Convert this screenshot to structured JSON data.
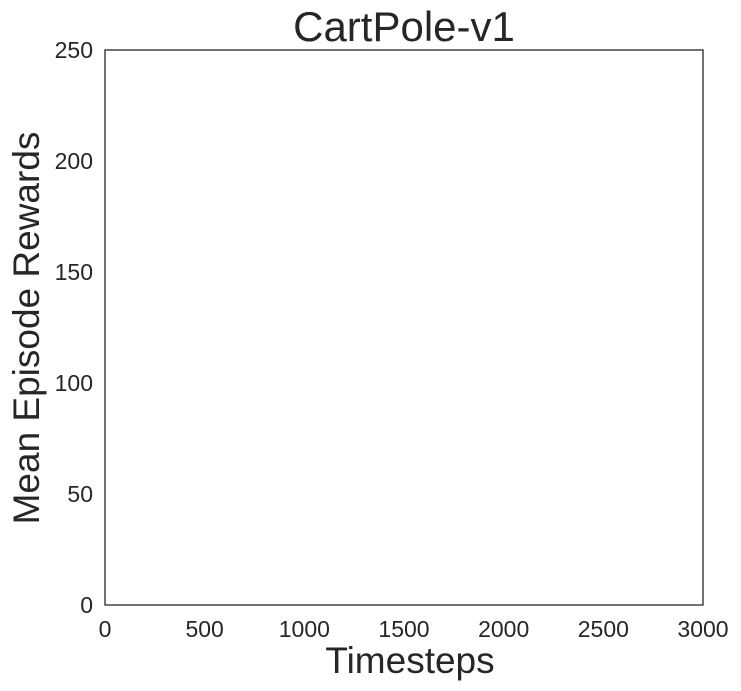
{
  "chart_data": {
    "type": "line",
    "title": "CartPole-v1",
    "xlabel": "Timesteps",
    "ylabel": "Mean Episode Rewards",
    "xlim": [
      0,
      3000
    ],
    "ylim": [
      0,
      250
    ],
    "xticks": [
      0,
      500,
      1000,
      1500,
      2000,
      2500,
      3000
    ],
    "yticks": [
      0,
      50,
      100,
      150,
      200,
      250
    ],
    "grid": false,
    "series": []
  }
}
